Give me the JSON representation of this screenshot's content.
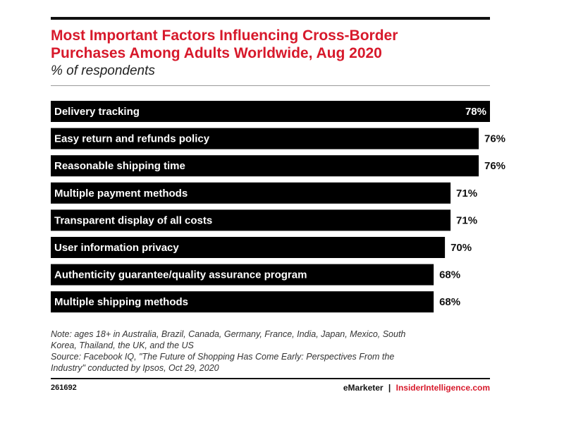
{
  "header": {
    "title_line1": "Most Important Factors Influencing Cross-Border",
    "title_line2": "Purchases Among Adults Worldwide, Aug 2020",
    "subtitle": "% of respondents"
  },
  "chart_data": {
    "type": "bar",
    "orientation": "horizontal",
    "title": "Most Important Factors Influencing Cross-Border Purchases Among Adults Worldwide, Aug 2020",
    "subtitle": "% of respondents",
    "categories": [
      "Delivery tracking",
      "Easy return and refunds policy",
      "Reasonable shipping time",
      "Multiple payment methods",
      "Transparent display of all costs",
      "User information privacy",
      "Authenticity guarantee/quality assurance program",
      "Multiple shipping methods"
    ],
    "values": [
      78,
      76,
      76,
      71,
      71,
      70,
      68,
      68
    ],
    "value_labels": [
      "78%",
      "76%",
      "76%",
      "71%",
      "71%",
      "70%",
      "68%",
      "68%"
    ],
    "xlim": [
      0,
      78
    ],
    "bar_color": "#000000",
    "grid": false,
    "legend": "none"
  },
  "footer": {
    "note_line1": "Note: ages 18+ in Australia, Brazil, Canada, Germany, France, India, Japan, Mexico, South",
    "note_line2": "Korea, Thailand, the UK, and the US",
    "source_line1": "Source: Facebook IQ, \"The Future of Shopping Has Come Early: Perspectives From the",
    "source_line2": "Industry\" conducted by Ipsos, Oct 29, 2020",
    "chart_id": "261692",
    "brand_emarketer": "eMarketer",
    "brand_separator": "|",
    "brand_insider": "InsiderIntelligence.com"
  },
  "colors": {
    "title": "#d7192b",
    "bar": "#000000",
    "label_inside": "#ffffff",
    "label_outside": "#111111"
  }
}
